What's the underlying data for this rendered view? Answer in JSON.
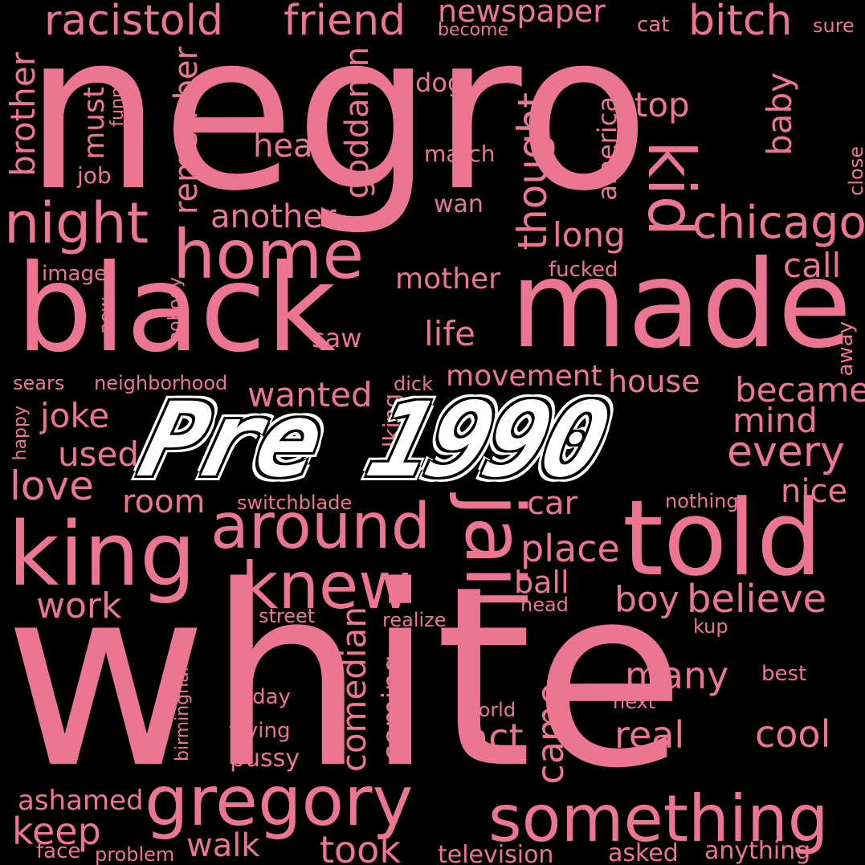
{
  "overlay_title": "Pre 1990",
  "text_color": "#ec7592",
  "overlay_color": "#ffffff",
  "background_color": "#000000",
  "words": {
    "negro": "negro",
    "white": "white",
    "black": "black",
    "made": "made",
    "told": "told",
    "king": "king",
    "knew": "knew",
    "around": "around",
    "home": "home",
    "night": "night",
    "gregory": "gregory",
    "something": "something",
    "jail": "jail",
    "kid": "kid",
    "chicago": "chicago",
    "racistold": "racistold",
    "friend": "friend",
    "newspaper": "newspaper",
    "bitch": "bitch",
    "brother": "brother",
    "must": "must",
    "funny": "funny",
    "job": "job",
    "remember": "remember",
    "goddamn": "goddamn",
    "hear": "hear",
    "another": "another",
    "dog": "dog",
    "march": "march",
    "wan": "wan",
    "thought": "thought",
    "america": "america",
    "stop": "stop",
    "baby": "baby",
    "long": "long",
    "close": "close",
    "call": "call",
    "fucked": "fucked",
    "image": "image",
    "new": "new",
    "nobody": "nobody",
    "mother": "mother",
    "life": "life",
    "saw": "saw",
    "away": "away",
    "sears": "sears",
    "neighborhood": "neighborhood",
    "dick": "dick",
    "movement": "movement",
    "house": "house",
    "became": "became",
    "wanted": "wanted",
    "joke": "joke",
    "happy": "happy",
    "used": "used",
    "mind": "mind",
    "every": "every",
    "talking": "talking",
    "love": "love",
    "room": "room",
    "switchblade": "switchblade",
    "nothing": "nothing",
    "nice": "nice",
    "car": "car",
    "place": "place",
    "ball": "ball",
    "head": "head",
    "boy": "boy",
    "believe": "believe",
    "work": "work",
    "street": "street",
    "realize": "realize",
    "kup": "kup",
    "many": "many",
    "best": "best",
    "birmingham": "birmingham",
    "today": "today",
    "comedian": "comedian",
    "coming": "coming",
    "came": "came",
    "world": "world",
    "next": "next",
    "act": "act",
    "real": "real",
    "cool": "cool",
    "trying": "trying",
    "pussy": "pussy",
    "ashamed": "ashamed",
    "keep": "keep",
    "walk": "walk",
    "took": "took",
    "face": "face",
    "problem": "problem",
    "television": "television",
    "asked": "asked",
    "anything": "anything",
    "become": "become",
    "cat": "cat",
    "sure": "sure"
  }
}
